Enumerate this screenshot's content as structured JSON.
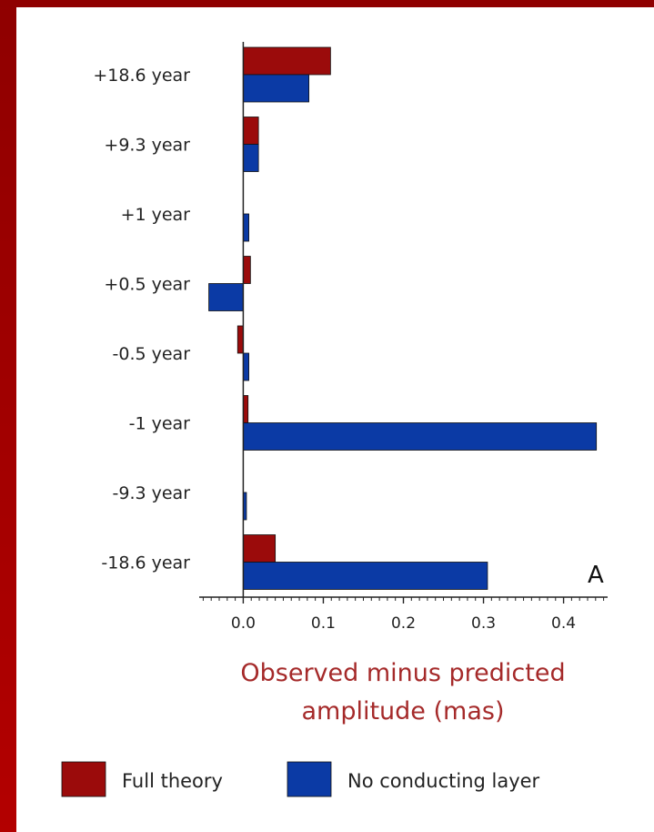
{
  "chart_data": {
    "type": "bar",
    "orientation": "horizontal",
    "categories": [
      "+18.6 year",
      "+9.3 year",
      "+1 year",
      "+0.5 year",
      "-0.5 year",
      "-1 year",
      "-9.3 year",
      "-18.6 year"
    ],
    "series": [
      {
        "name": "Full theory",
        "color": "#9b0b0b",
        "values": [
          0.109,
          0.019,
          0.0,
          0.009,
          -0.007,
          0.006,
          0.0,
          0.04
        ]
      },
      {
        "name": "No conducting layer",
        "color": "#0b3aa5",
        "values": [
          0.082,
          0.019,
          0.007,
          -0.043,
          0.007,
          0.441,
          0.004,
          0.305
        ]
      }
    ],
    "xlabel_line1": "Observed minus predicted",
    "xlabel_line2": "amplitude (mas)",
    "ylabel": "",
    "xlim": [
      -0.055,
      0.455
    ],
    "xticks": [
      0.0,
      0.1,
      0.2,
      0.3,
      0.4
    ],
    "xtick_labels": [
      "0.0",
      "0.1",
      "0.2",
      "0.3",
      "0.4"
    ],
    "panel_label": "A",
    "legend_position": "bottom"
  }
}
